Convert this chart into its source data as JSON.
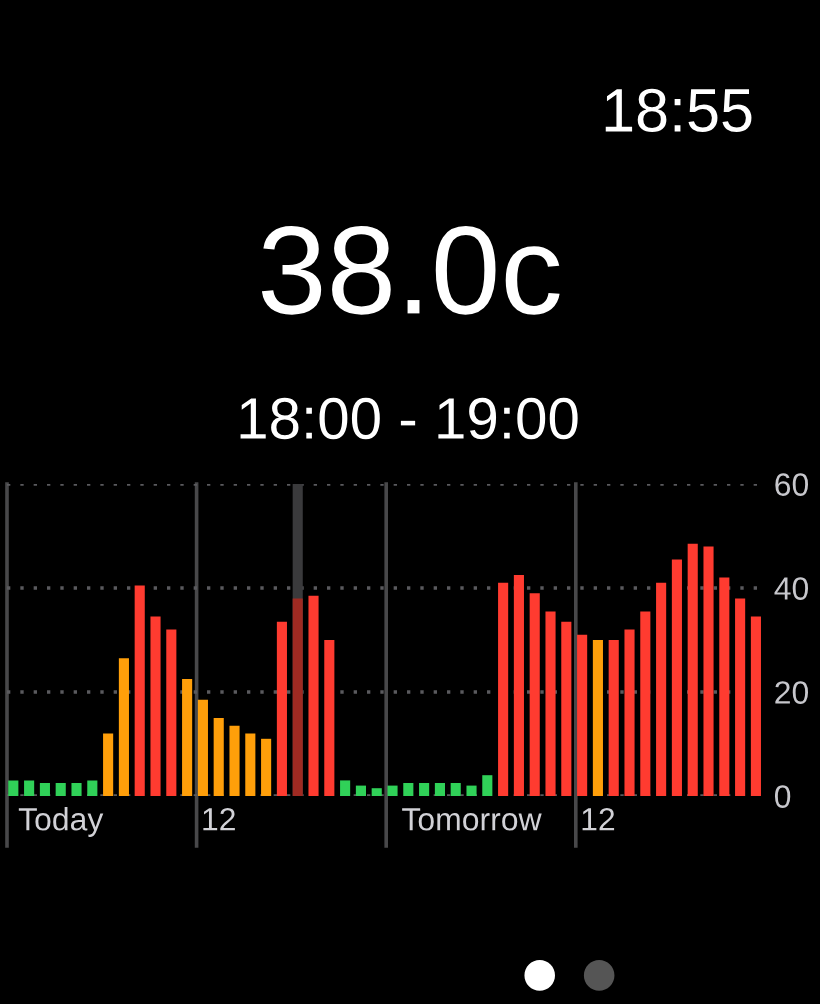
{
  "chart_data": {
    "type": "bar",
    "title": "38.0c",
    "subtitle": "18:00 - 19:00",
    "annotations": [
      "18:55"
    ],
    "categories": [
      null,
      null,
      null,
      "Today",
      null,
      null,
      null,
      null,
      null,
      null,
      null,
      null,
      null,
      "12",
      null,
      null,
      null,
      null,
      null,
      null,
      null,
      null,
      null,
      null,
      null,
      null,
      null,
      null,
      null,
      "Tomorrow",
      null,
      null,
      null,
      null,
      null,
      null,
      null,
      "12",
      null,
      null,
      null,
      null,
      null,
      null,
      null,
      null,
      null,
      null
    ],
    "values": [
      3,
      3,
      2.5,
      2.5,
      2.5,
      3,
      12,
      26.5,
      40.5,
      34.5,
      32,
      22.5,
      18.5,
      15,
      13.5,
      12,
      11,
      33.5,
      38,
      38.5,
      30,
      3,
      2,
      1.5,
      2,
      2.5,
      2.5,
      2.5,
      2.5,
      2,
      4,
      41,
      42.5,
      39,
      35.5,
      33.5,
      31,
      30,
      30,
      32,
      35.5,
      41,
      45.5,
      48.5,
      48,
      42,
      38,
      34.5
    ],
    "colors": [
      "#30d158",
      "#30d158",
      "#30d158",
      "#30d158",
      "#30d158",
      "#30d158",
      "#ff9f0a",
      "#ff9f0a",
      "#ff3b30",
      "#ff3b30",
      "#ff3b30",
      "#ff9f0a",
      "#ff9f0a",
      "#ff9f0a",
      "#ff9f0a",
      "#ff9f0a",
      "#ff9f0a",
      "#ff3b30",
      "#a02a22",
      "#ff3b30",
      "#ff3b30",
      "#30d158",
      "#30d158",
      "#30d158",
      "#30d158",
      "#30d158",
      "#30d158",
      "#30d158",
      "#30d158",
      "#30d158",
      "#30d158",
      "#ff3b30",
      "#ff3b30",
      "#ff3b30",
      "#ff3b30",
      "#ff3b30",
      "#ff3b30",
      "#ff9f0a",
      "#ff3b30",
      "#ff3b30",
      "#ff3b30",
      "#ff3b30",
      "#ff3b30",
      "#ff3b30",
      "#ff3b30",
      "#ff3b30",
      "#ff3b30",
      "#ff3b30"
    ],
    "ylim": [
      0,
      60
    ],
    "yticks": [
      0,
      20,
      40,
      60
    ],
    "grid": "y"
  }
}
